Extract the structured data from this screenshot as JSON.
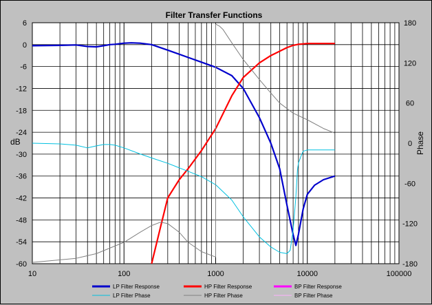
{
  "chart_data": {
    "type": "line",
    "title": "Filter Transfer Functions",
    "x_scale": "log",
    "xlim": [
      10,
      100000
    ],
    "x_ticks": [
      "10",
      "100",
      "1000",
      "10000",
      "100000"
    ],
    "ylabel_left": "dB",
    "ylim_left": [
      -60,
      6
    ],
    "y_ticks_left": [
      "6",
      "0",
      "-6",
      "-12",
      "-18",
      "-24",
      "-30",
      "-36",
      "-42",
      "-48",
      "-54",
      "-60"
    ],
    "ylabel_right": "Phase",
    "ylim_right": [
      -180,
      180
    ],
    "y_ticks_right": [
      "180",
      "120",
      "60",
      "0",
      "-60",
      "-120",
      "-180"
    ],
    "grid": true,
    "legend_position": "bottom",
    "series": [
      {
        "name": "LP Filter Response",
        "axis": "left",
        "color": "#0000cc",
        "x": [
          10,
          20,
          30,
          40,
          50,
          60,
          70,
          80,
          100,
          120,
          150,
          200,
          300,
          500,
          700,
          1000,
          1500,
          2000,
          3000,
          4000,
          5000,
          6000,
          7000,
          7500,
          8000,
          9000,
          10000,
          12000,
          15000,
          20000
        ],
        "y": [
          -0.3,
          -0.2,
          -0.1,
          -0.5,
          -0.6,
          -0.3,
          0,
          0.1,
          0.4,
          0.5,
          0.4,
          0,
          -1.5,
          -3.5,
          -4.8,
          -6.2,
          -8.5,
          -12,
          -20,
          -27,
          -34,
          -44,
          -52,
          -55,
          -52,
          -45,
          -41,
          -38.5,
          -37,
          -36
        ]
      },
      {
        "name": "HP Filter Response",
        "axis": "left",
        "color": "#ff0000",
        "x": [
          200,
          250,
          300,
          400,
          500,
          700,
          1000,
          1500,
          2000,
          3000,
          4000,
          5000,
          6000,
          7000,
          8000,
          10000,
          20000
        ],
        "y": [
          -60,
          -50,
          -42,
          -37,
          -34,
          -29,
          -23,
          -14,
          -9,
          -5,
          -3,
          -1.8,
          -0.8,
          -0.2,
          0.1,
          0.3,
          0.3
        ]
      },
      {
        "name": "BP Filter Response",
        "axis": "left",
        "color": "#ff00ff",
        "x": [],
        "y": []
      },
      {
        "name": "LP Filter Phase",
        "axis": "right",
        "color": "#00c0e0",
        "x": [
          10,
          20,
          30,
          40,
          50,
          60,
          70,
          80,
          100,
          150,
          200,
          300,
          500,
          700,
          1000,
          1500,
          2000,
          3000,
          4000,
          5000,
          6000,
          6500,
          7000,
          7500,
          7800,
          8000,
          8500,
          9000,
          10000,
          15000,
          20000
        ],
        "y": [
          0,
          -1,
          -3,
          -7,
          -4,
          -2,
          -2,
          -3,
          -7,
          -16,
          -22,
          -30,
          -42,
          -50,
          -62,
          -85,
          -110,
          -140,
          -155,
          -163,
          -165,
          -160,
          -130,
          -80,
          -40,
          -30,
          -20,
          -12,
          -10,
          -10,
          -10
        ]
      },
      {
        "name": "HP Filter Phase",
        "axis": "right",
        "color": "#808080",
        "x": [
          10,
          30,
          50,
          100,
          150,
          200,
          250,
          300,
          400,
          500,
          700,
          1000,
          1000,
          1100,
          1200,
          1500,
          2000,
          3000,
          4000,
          5000,
          7000,
          10000,
          15000,
          20000
        ],
        "y": [
          -178,
          -172,
          -165,
          -148,
          -133,
          -123,
          -118,
          -120,
          -133,
          -148,
          -162,
          -170,
          178,
          175,
          170,
          150,
          125,
          95,
          75,
          60,
          45,
          35,
          22,
          15
        ]
      },
      {
        "name": "BP Filter Phase",
        "axis": "right",
        "color": "#ffb0ff",
        "x": [],
        "y": []
      }
    ]
  }
}
